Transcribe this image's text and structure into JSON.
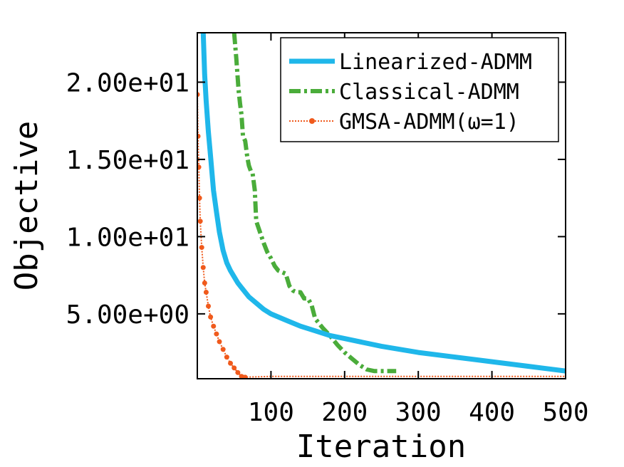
{
  "chart_data": {
    "type": "line",
    "xlabel": "Iteration",
    "ylabel": "Objective",
    "xlim": [
      0,
      500
    ],
    "ylim": [
      0.8,
      23.2
    ],
    "xticks": [
      100,
      200,
      300,
      400,
      500
    ],
    "xtick_labels": [
      "100",
      "200",
      "300",
      "400",
      "500"
    ],
    "yticks": [
      5,
      10,
      15,
      20
    ],
    "ytick_labels": [
      "5.00e+00",
      "1.00e+01",
      "1.50e+01",
      "2.00e+01"
    ],
    "grid": false,
    "legend_position": "top-right",
    "series": [
      {
        "name": "Linearized-ADMM",
        "color": "#1fb7ea",
        "style": "solid-thick",
        "x": [
          8,
          10,
          12,
          15,
          18,
          22,
          26,
          30,
          35,
          40,
          45,
          50,
          55,
          60,
          70,
          80,
          90,
          100,
          120,
          140,
          160,
          180,
          200,
          250,
          300,
          350,
          400,
          450,
          500
        ],
        "y": [
          23.2,
          20.5,
          18.8,
          16.8,
          15.2,
          13.0,
          11.6,
          10.3,
          9.1,
          8.3,
          7.8,
          7.4,
          7.0,
          6.7,
          6.1,
          5.7,
          5.3,
          5.0,
          4.6,
          4.2,
          3.9,
          3.6,
          3.4,
          2.9,
          2.5,
          2.2,
          1.9,
          1.6,
          1.3
        ]
      },
      {
        "name": "Classical-ADMM",
        "color": "#4aac3a",
        "style": "dash-dot",
        "x": [
          50,
          53,
          56,
          58,
          60,
          62,
          65,
          68,
          70,
          73,
          75,
          78,
          80,
          85,
          90,
          95,
          100,
          105,
          110,
          115,
          120,
          125,
          130,
          135,
          140,
          145,
          150,
          155,
          160,
          170,
          180,
          190,
          200,
          210,
          220,
          230,
          240,
          250,
          260,
          270
        ],
        "y": [
          23.2,
          21.5,
          19.5,
          18.6,
          17.9,
          16.5,
          16.2,
          15.1,
          14.6,
          14.2,
          14.1,
          13.0,
          11.0,
          10.3,
          9.6,
          9.0,
          8.6,
          8.1,
          7.8,
          7.7,
          7.6,
          6.8,
          6.5,
          6.4,
          6.4,
          6.0,
          6.0,
          5.6,
          4.7,
          4.1,
          3.6,
          3.0,
          2.5,
          2.1,
          1.7,
          1.4,
          1.3,
          1.3,
          1.3,
          1.3
        ]
      },
      {
        "name": "GMSA-ADMM(ω=1)",
        "color": "#f05a1c",
        "style": "dotted-markers",
        "x": [
          0,
          1,
          2,
          3,
          4,
          6,
          8,
          10,
          12,
          15,
          18,
          22,
          26,
          30,
          35,
          40,
          45,
          50,
          55,
          60,
          62,
          65,
          100,
          200,
          300,
          400,
          500
        ],
        "y": [
          19.2,
          16.5,
          14.5,
          12.5,
          11.0,
          9.3,
          8.0,
          7.0,
          6.4,
          5.5,
          4.8,
          4.2,
          3.7,
          3.2,
          2.7,
          2.2,
          1.8,
          1.5,
          1.2,
          0.95,
          0.9,
          0.9,
          0.95,
          0.95,
          0.95,
          0.95,
          0.95
        ]
      }
    ]
  }
}
